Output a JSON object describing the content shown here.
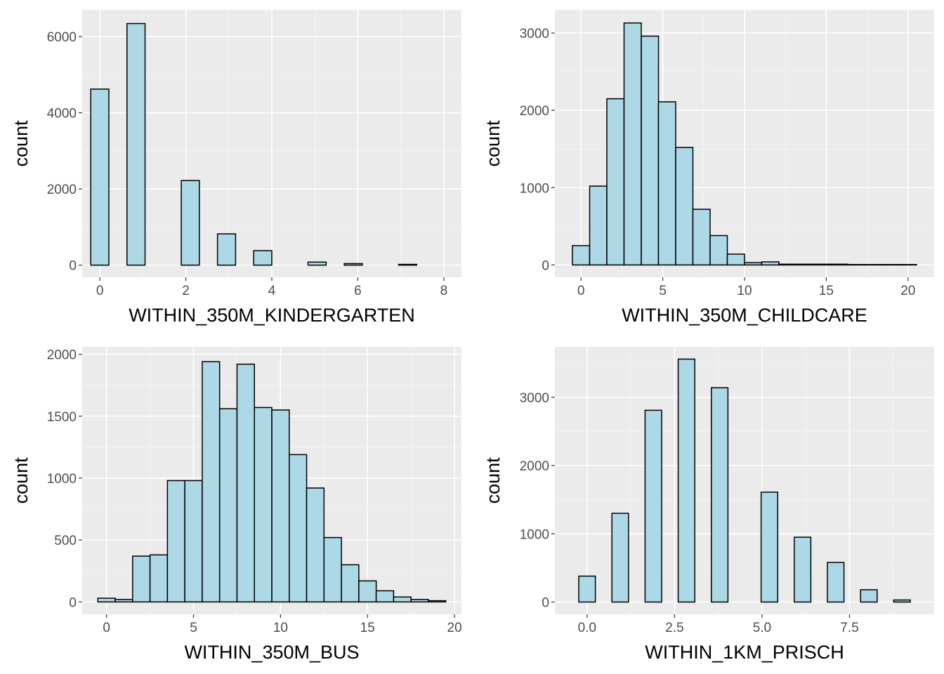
{
  "chart_data": [
    {
      "type": "bar",
      "title": "",
      "xlabel": "WITHIN_350M_KINDERGARTEN",
      "ylabel": "count",
      "xlim": [
        -0.41,
        8.41
      ],
      "ylim": [
        -320,
        6700
      ],
      "x_ticks": [
        0,
        2,
        4,
        6,
        8
      ],
      "y_ticks": [
        0,
        2000,
        4000,
        6000
      ],
      "grid": true,
      "bin_width": 0.421,
      "x": [
        0,
        0.842,
        1.263,
        1.684,
        2.105,
        2.947,
        3.789,
        5.053,
        5.895,
        7.158
      ],
      "values": [
        4620,
        6340,
        0,
        0,
        2220,
        820,
        380,
        80,
        40,
        20
      ]
    },
    {
      "type": "bar",
      "title": "",
      "xlabel": "WITHIN_350M_CHILDCARE",
      "ylabel": "count",
      "xlim": [
        -1.6,
        21.6
      ],
      "ylim": [
        -160,
        3300
      ],
      "x_ticks": [
        0,
        5,
        10,
        15,
        20
      ],
      "y_ticks": [
        0,
        1000,
        2000,
        3000
      ],
      "grid": true,
      "bin_width": 1.053,
      "x": [
        0,
        1.053,
        2.105,
        3.158,
        4.211,
        5.263,
        6.316,
        7.368,
        8.421,
        9.474,
        10.526,
        11.579,
        12.632,
        13.684,
        14.737,
        15.789,
        16.842,
        17.895,
        18.947,
        20
      ],
      "values": [
        250,
        1020,
        2150,
        3130,
        2960,
        2110,
        1520,
        720,
        380,
        140,
        30,
        40,
        10,
        10,
        10,
        10,
        5,
        5,
        5,
        5
      ]
    },
    {
      "type": "bar",
      "title": "",
      "xlabel": "WITHIN_350M_BUS",
      "ylabel": "count",
      "xlim": [
        -1.4,
        20.4
      ],
      "ylim": [
        -100,
        2060
      ],
      "x_ticks": [
        0,
        5,
        10,
        15,
        20
      ],
      "y_ticks": [
        0,
        500,
        1000,
        1500,
        2000
      ],
      "grid": true,
      "bin_width": 1,
      "x": [
        0,
        1,
        2,
        3,
        4,
        5,
        6,
        7,
        8,
        9,
        10,
        11,
        12,
        13,
        14,
        15,
        16,
        17,
        18,
        19
      ],
      "values": [
        30,
        20,
        370,
        380,
        980,
        980,
        1940,
        1560,
        1920,
        1570,
        1550,
        1190,
        920,
        520,
        300,
        170,
        90,
        40,
        20,
        10
      ]
    },
    {
      "type": "bar",
      "title": "",
      "xlabel": "WITHIN_1KM_PRISCH",
      "ylabel": "count",
      "xlim": [
        -0.92,
        9.92
      ],
      "ylim": [
        -180,
        3740
      ],
      "x_ticks": [
        0,
        2.5,
        5,
        7.5
      ],
      "x_tick_labels": [
        "0.0",
        "2.5",
        "5.0",
        "7.5"
      ],
      "y_ticks": [
        0,
        1000,
        2000,
        3000
      ],
      "grid": true,
      "bin_width": 0.474,
      "x": [
        0,
        0.474,
        0.947,
        1.421,
        1.895,
        2.368,
        2.842,
        3.316,
        3.789,
        4.263,
        4.737,
        5.211,
        5.684,
        6.158,
        6.632,
        7.105,
        7.579,
        8.053,
        8.526,
        9
      ],
      "values": [
        380,
        0,
        1300,
        0,
        2810,
        0,
        3560,
        0,
        3140,
        0,
        0,
        1610,
        0,
        950,
        0,
        580,
        0,
        180,
        0,
        30
      ]
    }
  ]
}
